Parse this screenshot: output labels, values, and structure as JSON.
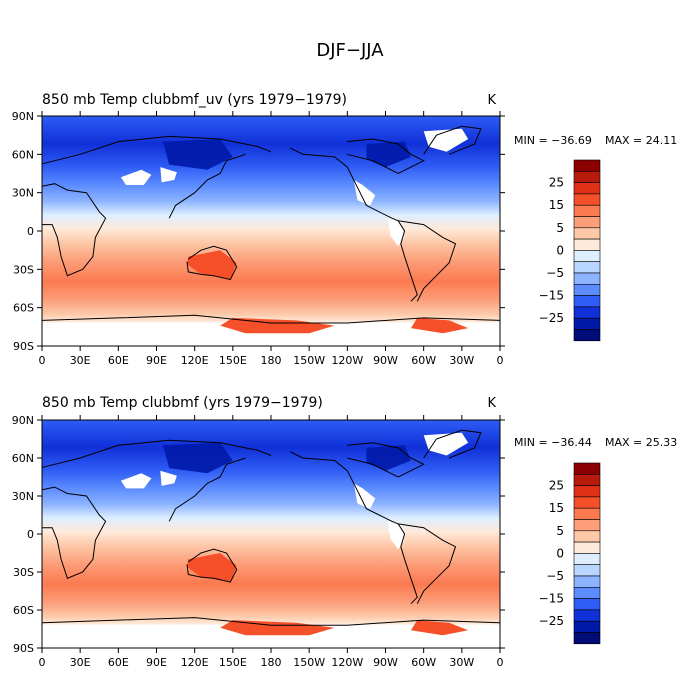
{
  "main_title": "DJF−JJA",
  "chart_data": [
    {
      "type": "heatmap",
      "title": "850 mb Temp clubbmf_uv (yrs 1979−1979)",
      "units": "K",
      "min_label": "MIN = −36.69",
      "max_label": "MAX =  24.11",
      "xlim": [
        0,
        360
      ],
      "ylim": [
        -90,
        90
      ],
      "x_ticks": [
        "0",
        "30E",
        "60E",
        "90E",
        "120E",
        "150E",
        "180",
        "150W",
        "120W",
        "90W",
        "60W",
        "30W",
        "0"
      ],
      "y_ticks": [
        "90N",
        "60N",
        "30N",
        "0",
        "30S",
        "60S",
        "90S"
      ],
      "colorbar": {
        "levels": [
          -30,
          -25,
          -20,
          -15,
          -10,
          -5,
          -2.5,
          0,
          2.5,
          5,
          10,
          15,
          20,
          25,
          30
        ],
        "labels": [
          "25",
          "15",
          "5",
          "0",
          "−5",
          "−15",
          "−25"
        ]
      }
    },
    {
      "type": "heatmap",
      "title": "850 mb Temp  clubbmf (yrs 1979−1979)",
      "units": "K",
      "min_label": "MIN = −36.44",
      "max_label": "MAX =  25.33",
      "xlim": [
        0,
        360
      ],
      "ylim": [
        -90,
        90
      ],
      "x_ticks": [
        "0",
        "30E",
        "60E",
        "90E",
        "120E",
        "150E",
        "180",
        "150W",
        "120W",
        "90W",
        "60W",
        "30W",
        "0"
      ],
      "y_ticks": [
        "90N",
        "60N",
        "30N",
        "0",
        "30S",
        "60S",
        "90S"
      ],
      "colorbar": {
        "levels": [
          -30,
          -25,
          -20,
          -15,
          -10,
          -5,
          -2.5,
          0,
          2.5,
          5,
          10,
          15,
          20,
          25,
          30
        ],
        "labels": [
          "25",
          "15",
          "5",
          "0",
          "−5",
          "−15",
          "−25"
        ]
      }
    }
  ],
  "colors": {
    "cb_top_to_bottom": [
      "#8b0000",
      "#b81a0c",
      "#e03016",
      "#f6502a",
      "#fb7a50",
      "#fc9e7a",
      "#fdc8a8",
      "#feeada",
      "#ddeeff",
      "#b8d6ff",
      "#8db4ff",
      "#5c8cff",
      "#2f5cf5",
      "#1030d8",
      "#001aa8",
      "#000c78"
    ]
  }
}
